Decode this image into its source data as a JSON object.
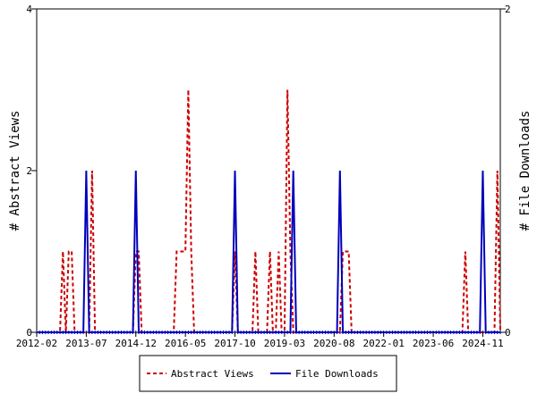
{
  "chart_data": {
    "type": "line",
    "x_tick_labels": [
      "2012-02",
      "2013-07",
      "2014-12",
      "2016-05",
      "2017-10",
      "2019-03",
      "2020-08",
      "2022-01",
      "2023-06",
      "2024-11"
    ],
    "y_left": {
      "label": "# Abstract Views",
      "ticks": [
        "0",
        "2",
        "4"
      ],
      "range": [
        0,
        4
      ]
    },
    "y_right": {
      "label": "# File Downloads",
      "ticks": [
        "0",
        "2"
      ],
      "range": [
        0,
        2
      ]
    },
    "months": {
      "start": "2012-02",
      "end": "2025-05"
    },
    "series": [
      {
        "name": "Abstract Views",
        "axis": "left",
        "color": "#cc0000",
        "style": "dashed",
        "points": [
          [
            "2012-11",
            1
          ],
          [
            "2013-01",
            1
          ],
          [
            "2013-02",
            1
          ],
          [
            "2013-09",
            2
          ],
          [
            "2014-12",
            1
          ],
          [
            "2015-01",
            1
          ],
          [
            "2016-02",
            1
          ],
          [
            "2016-03",
            1
          ],
          [
            "2016-04",
            1
          ],
          [
            "2016-05",
            1
          ],
          [
            "2016-06",
            3
          ],
          [
            "2016-07",
            1
          ],
          [
            "2017-10",
            1
          ],
          [
            "2018-05",
            1
          ],
          [
            "2018-10",
            1
          ],
          [
            "2019-01",
            1
          ],
          [
            "2019-04",
            3
          ],
          [
            "2019-05",
            1
          ],
          [
            "2020-11",
            1
          ],
          [
            "2020-12",
            1
          ],
          [
            "2021-01",
            1
          ],
          [
            "2024-05",
            1
          ],
          [
            "2025-04",
            2
          ]
        ]
      },
      {
        "name": "File Downloads",
        "axis": "right",
        "color": "#0000bb",
        "style": "solid",
        "points": [
          [
            "2013-07",
            1
          ],
          [
            "2014-12",
            1
          ],
          [
            "2017-10",
            1
          ],
          [
            "2019-06",
            1
          ],
          [
            "2020-10",
            1
          ],
          [
            "2024-11",
            1
          ]
        ]
      }
    ],
    "legend": {
      "position": "bottom",
      "entries": [
        "Abstract Views",
        "File Downloads"
      ]
    }
  }
}
